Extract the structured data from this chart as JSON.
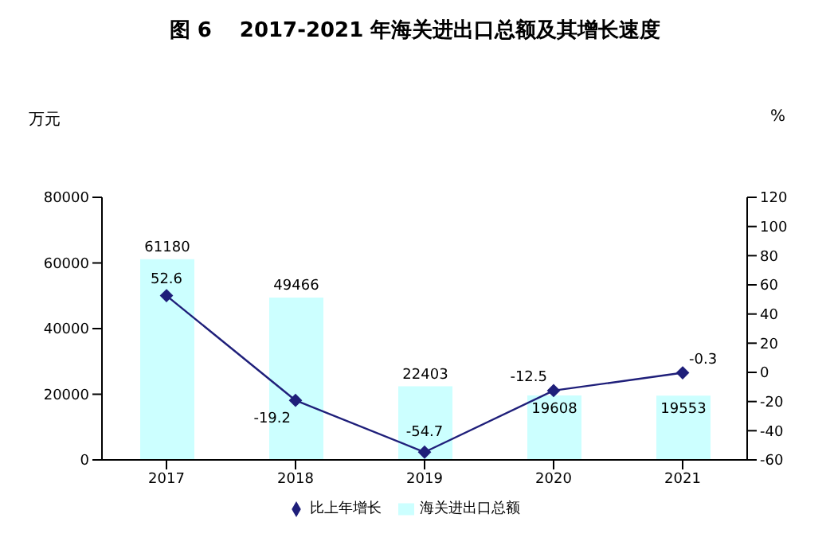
{
  "chart_data": {
    "type": "bar",
    "title": "图 6　 2017-2021 年海关进出口总额及其增长速度",
    "ylabel": "万元",
    "y2label": "%",
    "categories": [
      "2017",
      "2018",
      "2019",
      "2020",
      "2021"
    ],
    "series": [
      {
        "name": "海关进出口总额",
        "color": "#ccffff",
        "values": [
          61180,
          49466,
          22403,
          19608,
          19553
        ]
      },
      {
        "name": "比上年增长",
        "type": "line",
        "axis": "y2",
        "color": "#1f1f7a",
        "marker": "diamond",
        "values": [
          52.6,
          -19.2,
          -54.7,
          -12.5,
          -0.3
        ]
      }
    ],
    "ylim": [
      0,
      80000
    ],
    "yticks": [
      0,
      20000,
      40000,
      60000,
      80000
    ],
    "y2lim": [
      -60,
      120
    ],
    "y2ticks": [
      -60,
      -40,
      -20,
      0,
      20,
      40,
      60,
      80,
      100,
      120
    ],
    "data_labels": true,
    "legend": "bottom",
    "grid": false
  }
}
